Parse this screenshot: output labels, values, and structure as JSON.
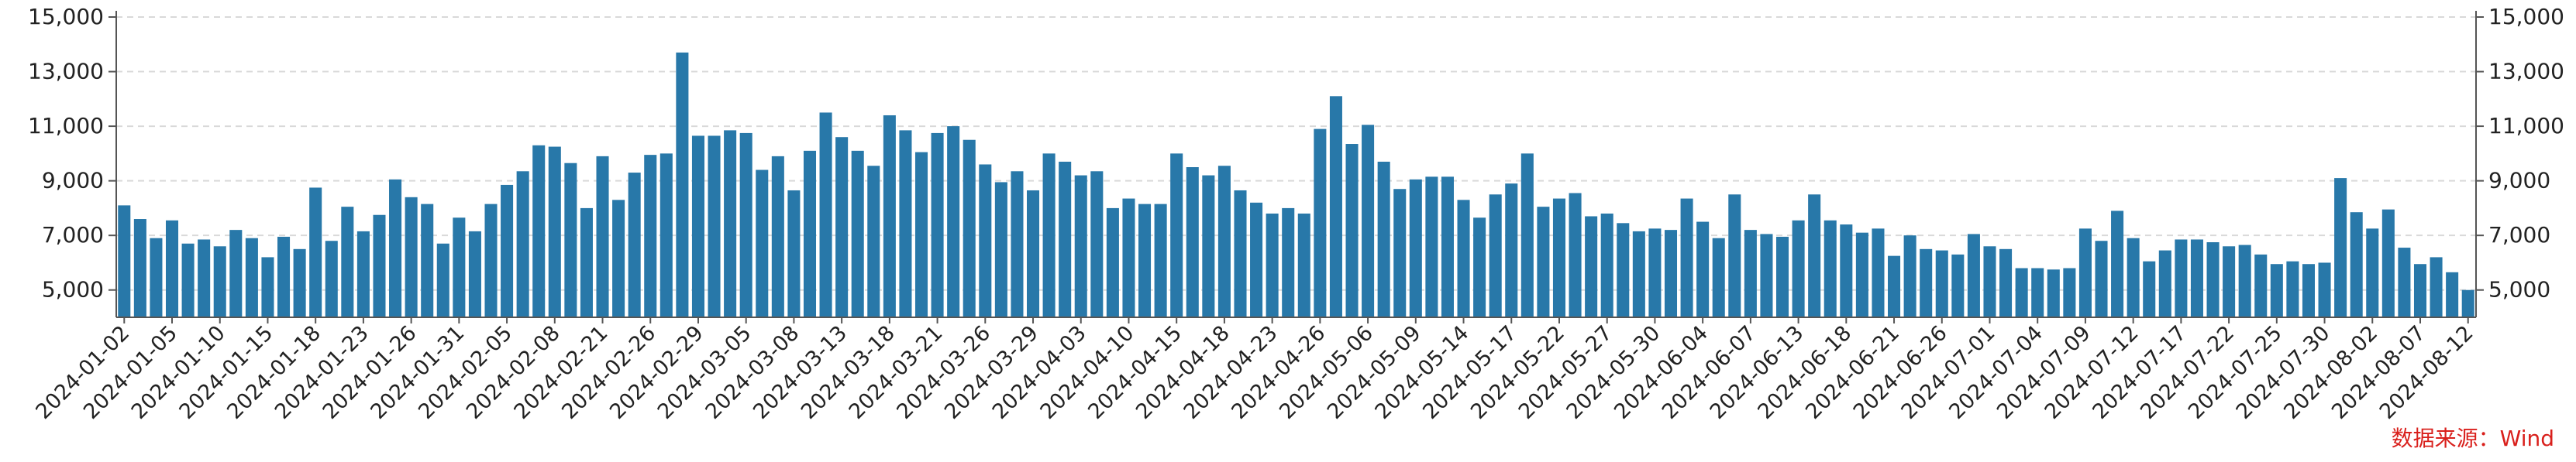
{
  "chart_data": {
    "type": "bar",
    "title": "",
    "xlabel": "",
    "ylabel": "",
    "ylim": [
      4000,
      15000
    ],
    "yticks": [
      "5,000",
      "7,000",
      "9,000",
      "11,000",
      "13,000",
      "15,000"
    ],
    "ytick_values": [
      5000,
      7000,
      9000,
      11000,
      13000,
      15000
    ],
    "grid": "horizontal dashed",
    "legend": "none",
    "source_note": "数据来源：Wind",
    "colors": {
      "bar": "#2878a9",
      "source_note": "#d9201c",
      "axis": "#555555",
      "grid": "#d9d9d9"
    },
    "x_tick_labels": [
      "2024-01-02",
      "2024-01-05",
      "2024-01-10",
      "2024-01-15",
      "2024-01-18",
      "2024-01-23",
      "2024-01-26",
      "2024-01-31",
      "2024-02-05",
      "2024-02-08",
      "2024-02-21",
      "2024-02-26",
      "2024-02-29",
      "2024-03-05",
      "2024-03-08",
      "2024-03-13",
      "2024-03-18",
      "2024-03-21",
      "2024-03-26",
      "2024-03-29",
      "2024-04-03",
      "2024-04-10",
      "2024-04-15",
      "2024-04-18",
      "2024-04-23",
      "2024-04-26",
      "2024-05-06",
      "2024-05-09",
      "2024-05-14",
      "2024-05-17",
      "2024-05-22",
      "2024-05-27",
      "2024-05-30",
      "2024-06-04",
      "2024-06-07",
      "2024-06-13",
      "2024-06-18",
      "2024-06-21",
      "2024-06-26",
      "2024-07-01",
      "2024-07-04",
      "2024-07-09",
      "2024-07-12",
      "2024-07-17",
      "2024-07-22",
      "2024-07-25",
      "2024-07-30",
      "2024-08-02",
      "2024-08-07",
      "2024-08-12"
    ],
    "values": [
      8100,
      7600,
      6900,
      7550,
      6700,
      6850,
      6600,
      7200,
      6900,
      6200,
      6950,
      6500,
      8750,
      6800,
      8050,
      7150,
      7750,
      9050,
      8400,
      8150,
      6700,
      7650,
      7150,
      8150,
      8850,
      9350,
      10300,
      10250,
      9650,
      8000,
      9900,
      8300,
      9300,
      9950,
      10000,
      13700,
      10650,
      10650,
      10850,
      10750,
      9400,
      9900,
      8650,
      10100,
      11500,
      10600,
      10100,
      9550,
      11400,
      10850,
      10050,
      10750,
      11000,
      10500,
      9600,
      8950,
      9350,
      8650,
      10000,
      9700,
      9200,
      9350,
      8000,
      8350,
      8150,
      8150,
      10000,
      9500,
      9200,
      9550,
      8650,
      8200,
      7800,
      8000,
      7800,
      10900,
      12100,
      10350,
      11050,
      9700,
      8700,
      9050,
      9150,
      9150,
      8300,
      7650,
      8500,
      8900,
      10000,
      8050,
      8350,
      8550,
      7700,
      7800,
      7450,
      7150,
      7250,
      7200,
      8350,
      7500,
      6900,
      8500,
      7200,
      7050,
      6950,
      7550,
      8500,
      7550,
      7400,
      7100,
      7250,
      6250,
      7000,
      6500,
      6450,
      6300,
      7050,
      6600,
      6500,
      5800,
      5800,
      5750,
      5800,
      7250,
      6800,
      7900,
      6900,
      6050,
      6450,
      6850,
      6850,
      6750,
      6600,
      6650,
      6300,
      5950,
      6050,
      5950,
      6000,
      9100,
      7850,
      7250,
      7950,
      6550,
      5950,
      6200,
      5650,
      5000
    ]
  }
}
